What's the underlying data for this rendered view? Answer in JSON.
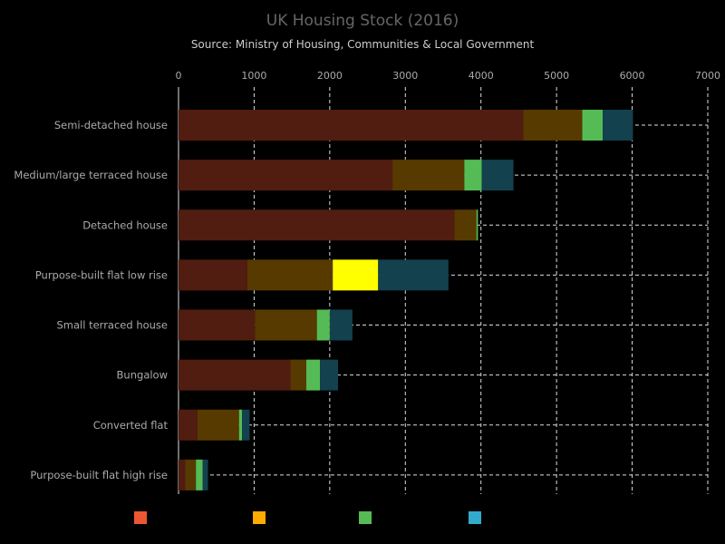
{
  "chart_data": {
    "type": "bar",
    "orientation": "horizontal",
    "stacked": true,
    "title": "UK Housing Stock (2016)",
    "subtitle": "Source: Ministry of Housing, Communities & Local Government",
    "xlim": [
      0,
      7000
    ],
    "x_ticks": [
      "0",
      "1000",
      "2000",
      "3000",
      "4000",
      "5000",
      "6000",
      "7000"
    ],
    "grid": true,
    "legend_placement": "bottom",
    "categories": [
      "Semi-detached house",
      "Medium/large terraced house",
      "Detached house",
      "Purpose-built flat low rise",
      "Small terraced house",
      "Bungalow",
      "Converted flat",
      "Purpose-built flat high rise"
    ],
    "series": [
      {
        "color": "#ee5533",
        "values": [
          4560,
          2830,
          3650,
          910,
          1010,
          1480,
          250,
          90
        ]
      },
      {
        "color": "#ffaa00",
        "values": [
          780,
          950,
          290,
          1130,
          820,
          210,
          550,
          140
        ]
      },
      {
        "color": "#55bb55",
        "values": [
          270,
          230,
          20,
          600,
          170,
          180,
          40,
          90
        ]
      },
      {
        "color": "#33aacc",
        "values": [
          400,
          420,
          0,
          930,
          300,
          240,
          100,
          70
        ]
      }
    ],
    "highlight": {
      "category_index": 3,
      "series_index": 2,
      "color": "#ffff00"
    }
  }
}
